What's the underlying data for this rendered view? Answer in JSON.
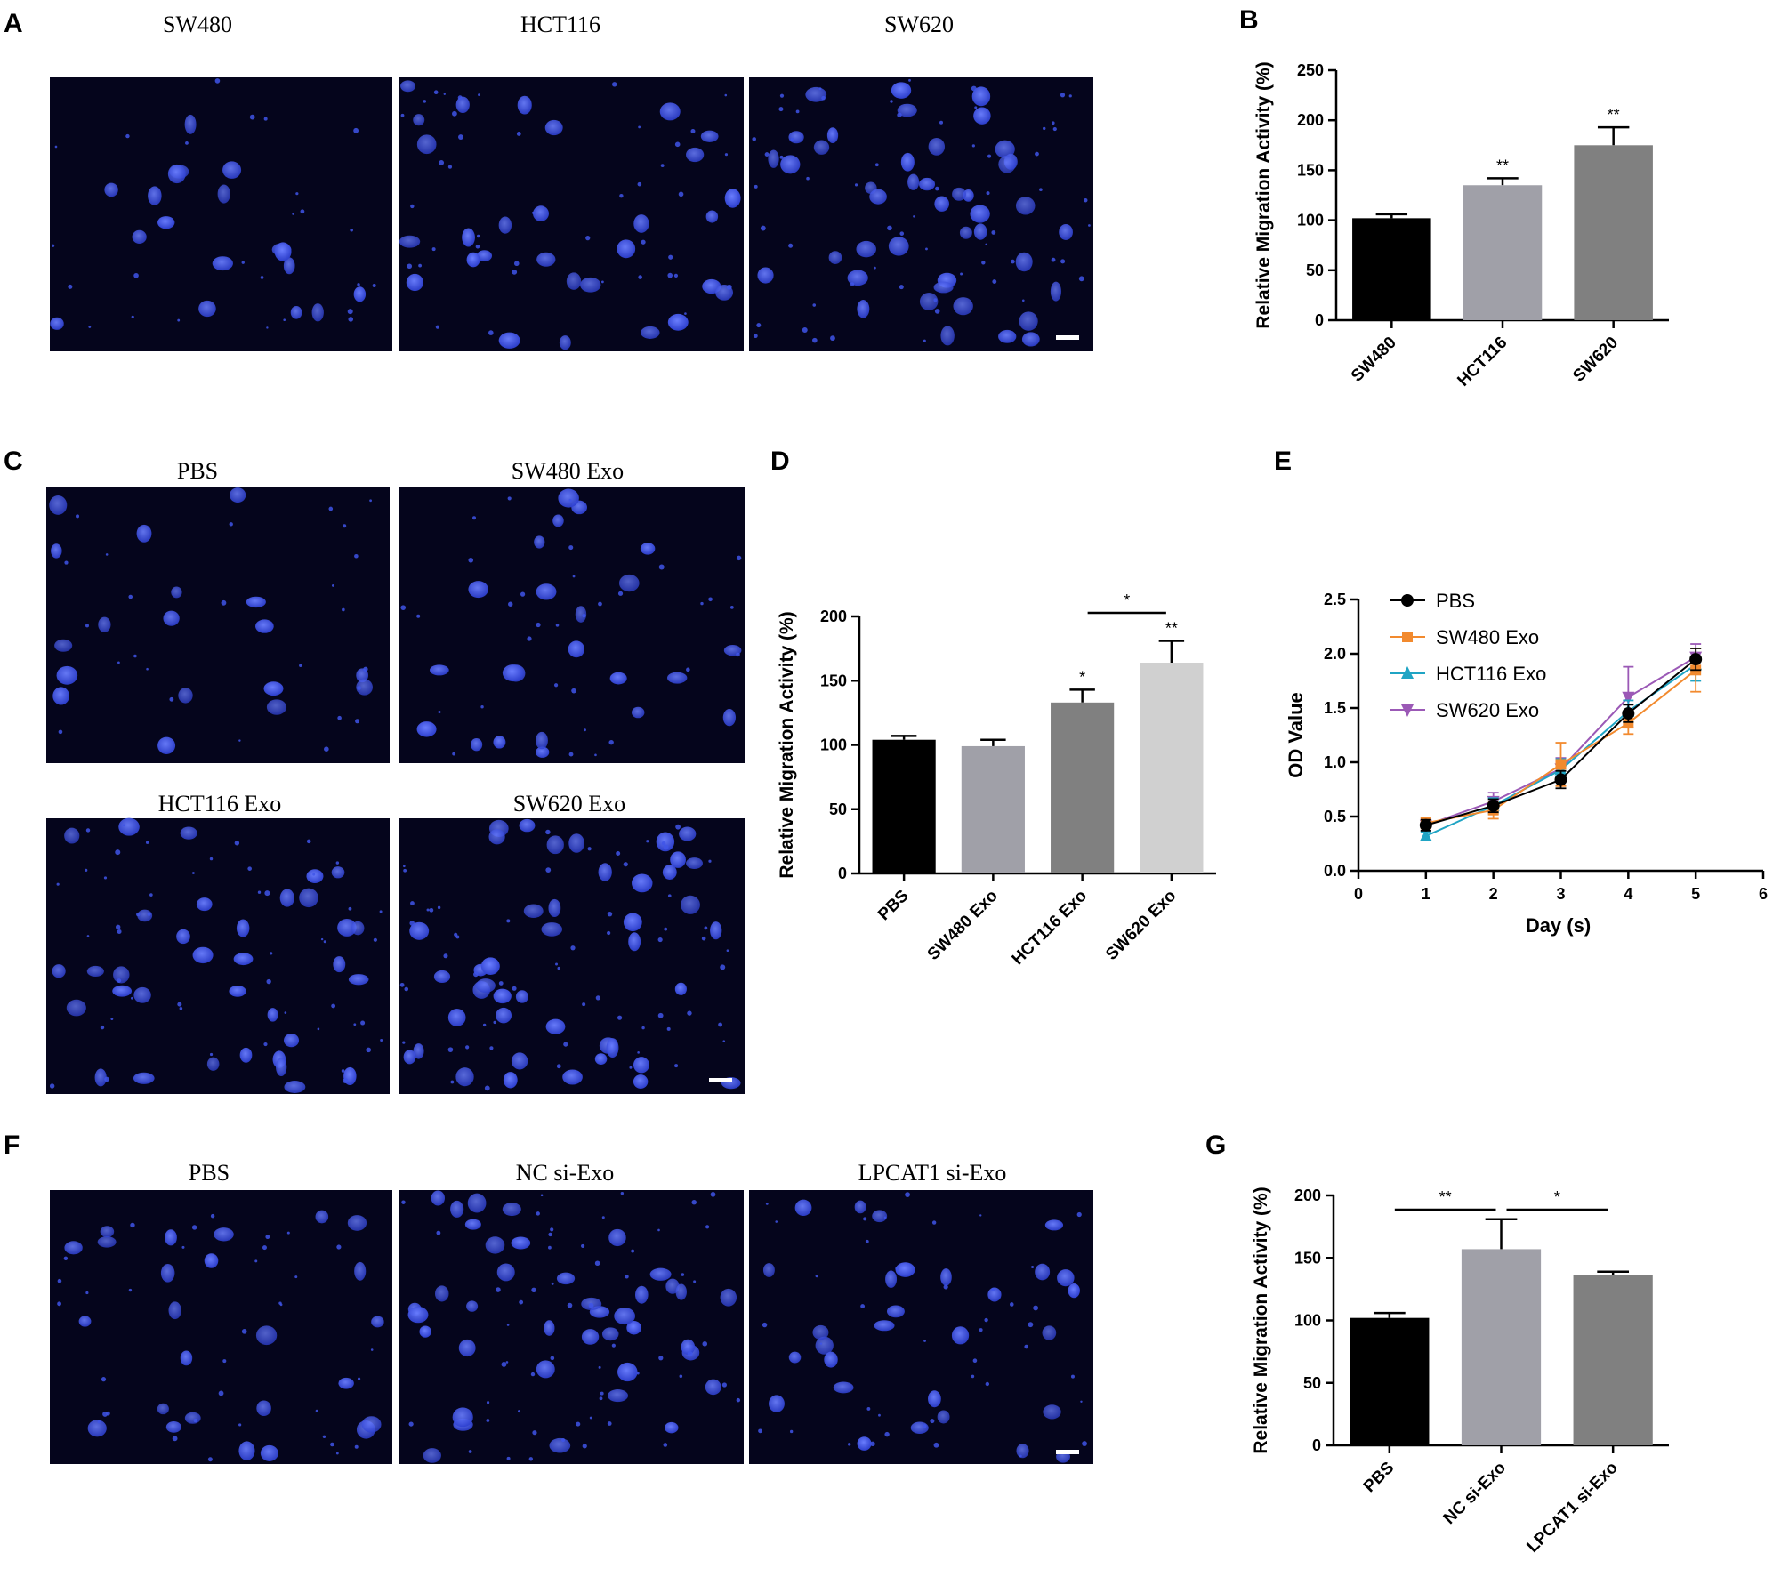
{
  "panel_labels": [
    "A",
    "B",
    "C",
    "D",
    "E",
    "F",
    "G"
  ],
  "micrographs": {
    "A": [
      "SW480",
      "HCT116",
      "SW620"
    ],
    "C": [
      "PBS",
      "SW480 Exo",
      "HCT116 Exo",
      "SW620 Exo"
    ],
    "F": [
      "PBS",
      "NC si-Exo",
      "LPCAT1 si-Exo"
    ]
  },
  "colors": {
    "nucleus_blue": "#3f55e8",
    "image_background": "#05051c",
    "bar_black": "#000000",
    "bar_light_gray": "#a0a0a8",
    "bar_dark_gray": "#808080",
    "bar_pale_gray": "#d0d0d0",
    "pbs_line": "#000000",
    "sw480_line": "#f28a2e",
    "hct116_line": "#1fa4c4",
    "sw620_line": "#9b59b6"
  },
  "chart_data": [
    {
      "panel": "B",
      "type": "bar",
      "categories": [
        "SW480",
        "HCT116",
        "SW620"
      ],
      "values": [
        102,
        135,
        175
      ],
      "errors": [
        4,
        7,
        18
      ],
      "significance": [
        "",
        "**",
        "**"
      ],
      "ylabel": "Relative Migration Activity (%)",
      "ylim": [
        0,
        250
      ],
      "yticks": [
        0,
        50,
        100,
        150,
        200,
        250
      ]
    },
    {
      "panel": "D",
      "type": "bar",
      "categories": [
        "PBS",
        "SW480 Exo",
        "HCT116 Exo",
        "SW620 Exo"
      ],
      "values": [
        104,
        99,
        133,
        164
      ],
      "errors": [
        3,
        5,
        10,
        17
      ],
      "significance": [
        "",
        "",
        "*",
        "**"
      ],
      "brackets": [
        {
          "from": "HCT116 Exo",
          "to": "SW620 Exo",
          "label": "*"
        }
      ],
      "ylabel": "Relative Migration Activity (%)",
      "ylim": [
        0,
        200
      ],
      "yticks": [
        0,
        50,
        100,
        150,
        200
      ]
    },
    {
      "panel": "E",
      "type": "line",
      "xlabel": "Day (s)",
      "ylabel": "OD Value",
      "xlim": [
        0,
        6
      ],
      "ylim": [
        0,
        2.5
      ],
      "xticks": [
        0,
        1,
        2,
        3,
        4,
        5,
        6
      ],
      "yticks": [
        "0.0",
        "0.5",
        "1.0",
        "1.5",
        "2.0",
        "2.5"
      ],
      "x": [
        1,
        2,
        3,
        4,
        5
      ],
      "legend_position": "top-left",
      "series": [
        {
          "name": "PBS",
          "marker": "circle",
          "values": [
            0.42,
            0.6,
            0.84,
            1.45,
            1.95
          ],
          "errors": [
            0.05,
            0.06,
            0.08,
            0.08,
            0.1
          ]
        },
        {
          "name": "SW480 Exo",
          "marker": "square",
          "values": [
            0.44,
            0.56,
            0.98,
            1.36,
            1.85
          ],
          "errors": [
            0.05,
            0.08,
            0.2,
            0.1,
            0.2
          ]
        },
        {
          "name": "HCT116 Exo",
          "marker": "triangle-up",
          "values": [
            0.32,
            0.6,
            0.93,
            1.47,
            1.9
          ],
          "errors": [
            0.04,
            0.07,
            0.1,
            0.1,
            0.15
          ]
        },
        {
          "name": "SW620 Exo",
          "marker": "triangle-down",
          "values": [
            0.42,
            0.64,
            0.94,
            1.6,
            1.97
          ],
          "errors": [
            0.05,
            0.08,
            0.1,
            0.28,
            0.12
          ]
        }
      ]
    },
    {
      "panel": "G",
      "type": "bar",
      "categories": [
        "PBS",
        "NC si-Exo",
        "LPCAT1 si-Exo"
      ],
      "values": [
        102,
        157,
        136
      ],
      "errors": [
        4,
        24,
        3
      ],
      "significance": [
        "",
        "",
        ""
      ],
      "brackets": [
        {
          "from": "PBS",
          "to": "NC si-Exo",
          "label": "**"
        },
        {
          "from": "NC si-Exo",
          "to": "LPCAT1 si-Exo",
          "label": "*"
        }
      ],
      "ylabel": "Relative Migration Activity (%)",
      "ylim": [
        0,
        200
      ],
      "yticks": [
        0,
        50,
        100,
        150,
        200
      ]
    }
  ]
}
